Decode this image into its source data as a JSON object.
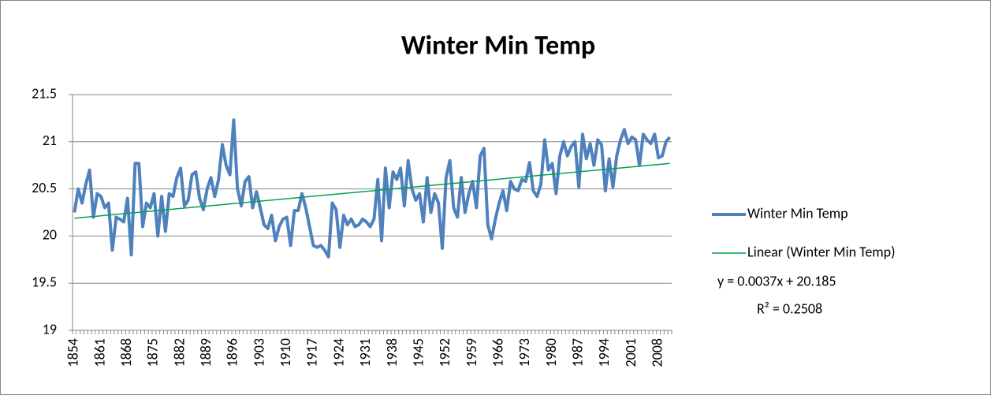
{
  "chart_data": {
    "type": "line",
    "title": "Winter Min Temp",
    "categories": [
      "1854",
      null,
      null,
      null,
      null,
      null,
      null,
      "1861",
      null,
      null,
      null,
      null,
      null,
      null,
      "1868",
      null,
      null,
      null,
      null,
      null,
      null,
      "1875",
      null,
      null,
      null,
      null,
      null,
      null,
      "1882",
      null,
      null,
      null,
      null,
      null,
      null,
      "1889",
      null,
      null,
      null,
      null,
      null,
      null,
      "1896",
      null,
      null,
      null,
      null,
      null,
      null,
      "1903",
      null,
      null,
      null,
      null,
      null,
      null,
      "1910",
      null,
      null,
      null,
      null,
      null,
      null,
      "1917",
      null,
      null,
      null,
      null,
      null,
      null,
      "1924",
      null,
      null,
      null,
      null,
      null,
      null,
      "1931",
      null,
      null,
      null,
      null,
      null,
      null,
      "1938",
      null,
      null,
      null,
      null,
      null,
      null,
      "1945",
      null,
      null,
      null,
      null,
      null,
      null,
      "1952",
      null,
      null,
      null,
      null,
      null,
      null,
      "1959",
      null,
      null,
      null,
      null,
      null,
      null,
      "1966",
      null,
      null,
      null,
      null,
      null,
      null,
      "1973",
      null,
      null,
      null,
      null,
      null,
      null,
      "1980",
      null,
      null,
      null,
      null,
      null,
      null,
      "1987",
      null,
      null,
      null,
      null,
      null,
      null,
      "1994",
      null,
      null,
      null,
      null,
      null,
      null,
      "2001",
      null,
      null,
      null,
      null,
      null,
      null,
      "2008",
      null,
      null,
      null
    ],
    "series": [
      {
        "name": "Winter Min Temp",
        "color": "#4f81bd",
        "values": [
          20.25,
          20.5,
          20.35,
          20.55,
          20.7,
          20.2,
          20.45,
          20.42,
          20.3,
          20.35,
          19.85,
          20.2,
          20.18,
          20.15,
          20.4,
          19.8,
          20.77,
          20.77,
          20.1,
          20.35,
          20.3,
          20.45,
          20.0,
          20.42,
          20.05,
          20.45,
          20.42,
          20.62,
          20.72,
          20.32,
          20.38,
          20.65,
          20.68,
          20.4,
          20.28,
          20.5,
          20.62,
          20.42,
          20.6,
          20.97,
          20.75,
          20.65,
          21.23,
          20.5,
          20.32,
          20.58,
          20.63,
          20.3,
          20.47,
          20.3,
          20.12,
          20.08,
          20.22,
          19.95,
          20.1,
          20.18,
          20.2,
          19.9,
          20.27,
          20.27,
          20.45,
          20.3,
          20.1,
          19.9,
          19.88,
          19.9,
          19.85,
          19.78,
          20.35,
          20.28,
          19.88,
          20.22,
          20.12,
          20.18,
          20.1,
          20.12,
          20.18,
          20.15,
          20.1,
          20.18,
          20.6,
          19.95,
          20.72,
          20.3,
          20.68,
          20.6,
          20.72,
          20.32,
          20.8,
          20.5,
          20.38,
          20.45,
          20.15,
          20.62,
          20.25,
          20.45,
          20.35,
          19.87,
          20.62,
          20.8,
          20.3,
          20.2,
          20.62,
          20.25,
          20.45,
          20.58,
          20.3,
          20.85,
          20.93,
          20.12,
          19.97,
          20.18,
          20.35,
          20.48,
          20.27,
          20.58,
          20.5,
          20.48,
          20.6,
          20.58,
          20.78,
          20.48,
          20.42,
          20.55,
          21.02,
          20.7,
          20.77,
          20.45,
          20.85,
          21.0,
          20.85,
          20.95,
          21.0,
          20.52,
          21.08,
          20.82,
          20.98,
          20.75,
          21.02,
          20.97,
          20.48,
          20.82,
          20.52,
          20.85,
          21.02,
          21.13,
          20.98,
          21.05,
          21.02,
          20.75,
          21.08,
          21.02,
          20.98,
          21.08,
          20.83,
          20.85,
          21.0,
          21.05
        ]
      }
    ],
    "trendline": {
      "name": "Linear (Winter Min Temp)",
      "color": "#00a04b",
      "values": [
        20.189,
        20.77
      ],
      "equation": "y = 0.0037x + 20.185",
      "r_squared": "R² = 0.2508"
    },
    "ylim": [
      19,
      21.5
    ],
    "yticks": [
      19,
      19.5,
      20,
      20.5,
      21,
      21.5
    ],
    "grid": true,
    "legend": "right"
  }
}
